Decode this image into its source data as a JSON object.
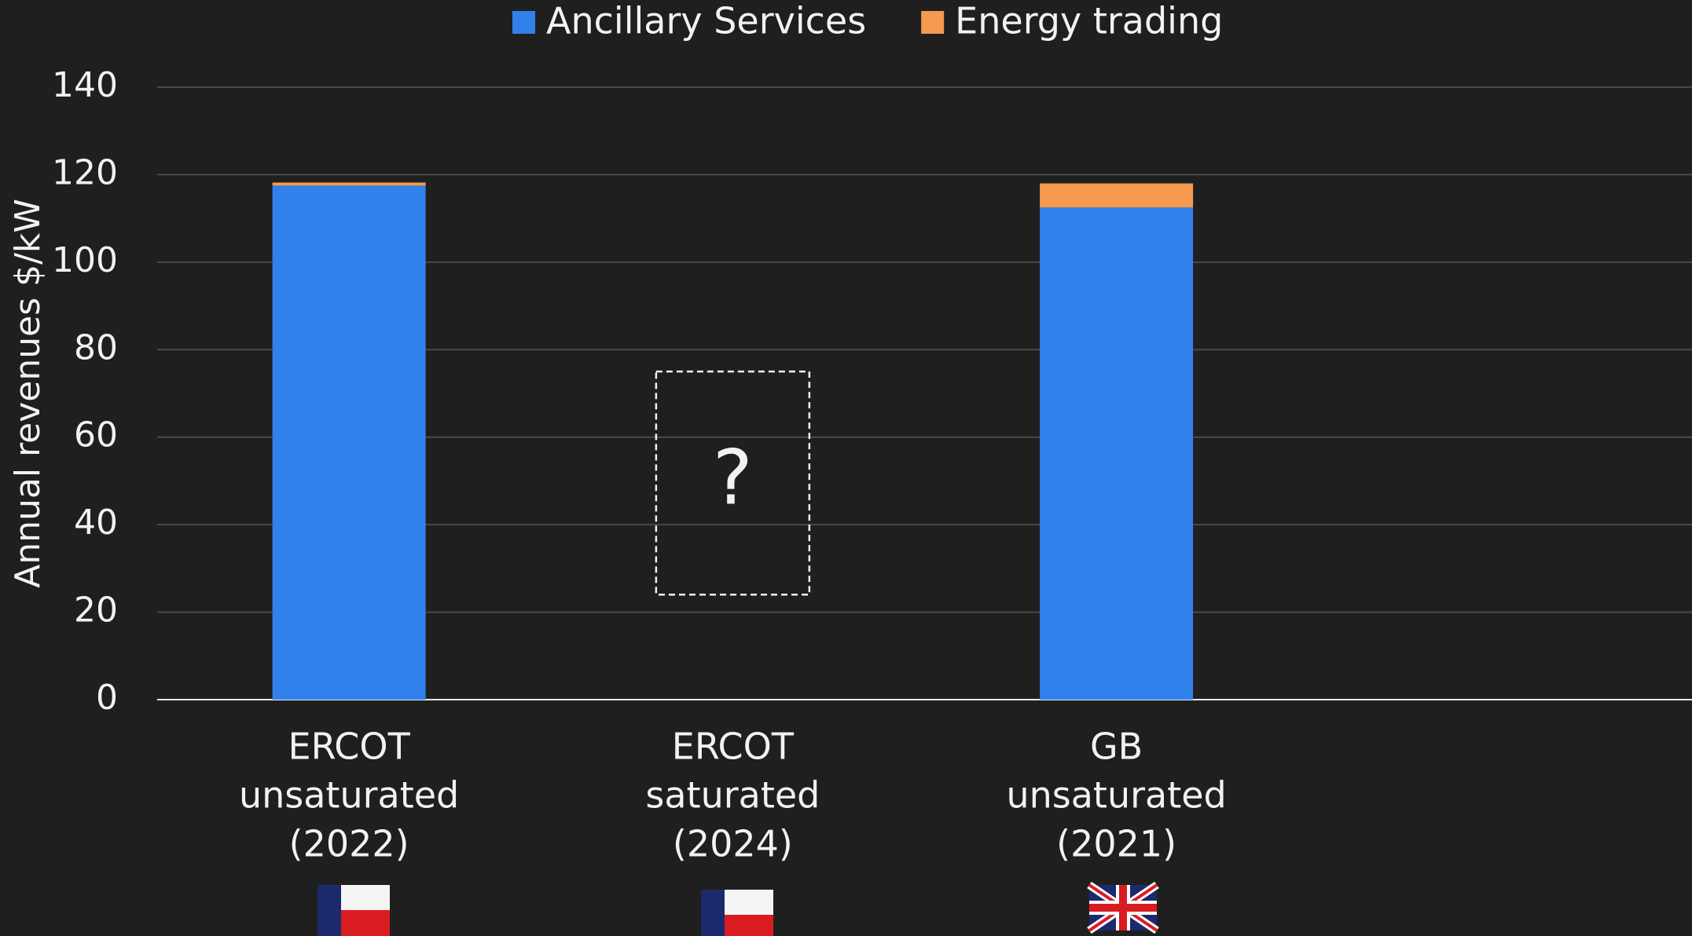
{
  "chart_data": {
    "type": "stacked_bar",
    "y_label": "Annual revenues $/kW",
    "categories": [
      [
        "ERCOT",
        "unsaturated",
        "(2022)"
      ],
      [
        "ERCOT",
        "saturated",
        "(2024)"
      ],
      [
        "GB",
        "unsaturated",
        "(2021)"
      ]
    ],
    "series": [
      {
        "name": "Ancillary Services",
        "color": "#3081ec",
        "values": [
          117.5,
          null,
          112.5
        ]
      },
      {
        "name": "Energy trading",
        "color": "#f59a4f",
        "values": [
          0.7,
          null,
          5.5
        ]
      }
    ],
    "annotations": [
      {
        "text": "?",
        "category": 1,
        "y": [
          24,
          75
        ]
      }
    ],
    "ylim": [
      0,
      140
    ],
    "yticks": [
      0,
      20,
      40,
      60,
      80,
      100,
      120,
      140
    ],
    "grid": true,
    "legend": "top"
  }
}
